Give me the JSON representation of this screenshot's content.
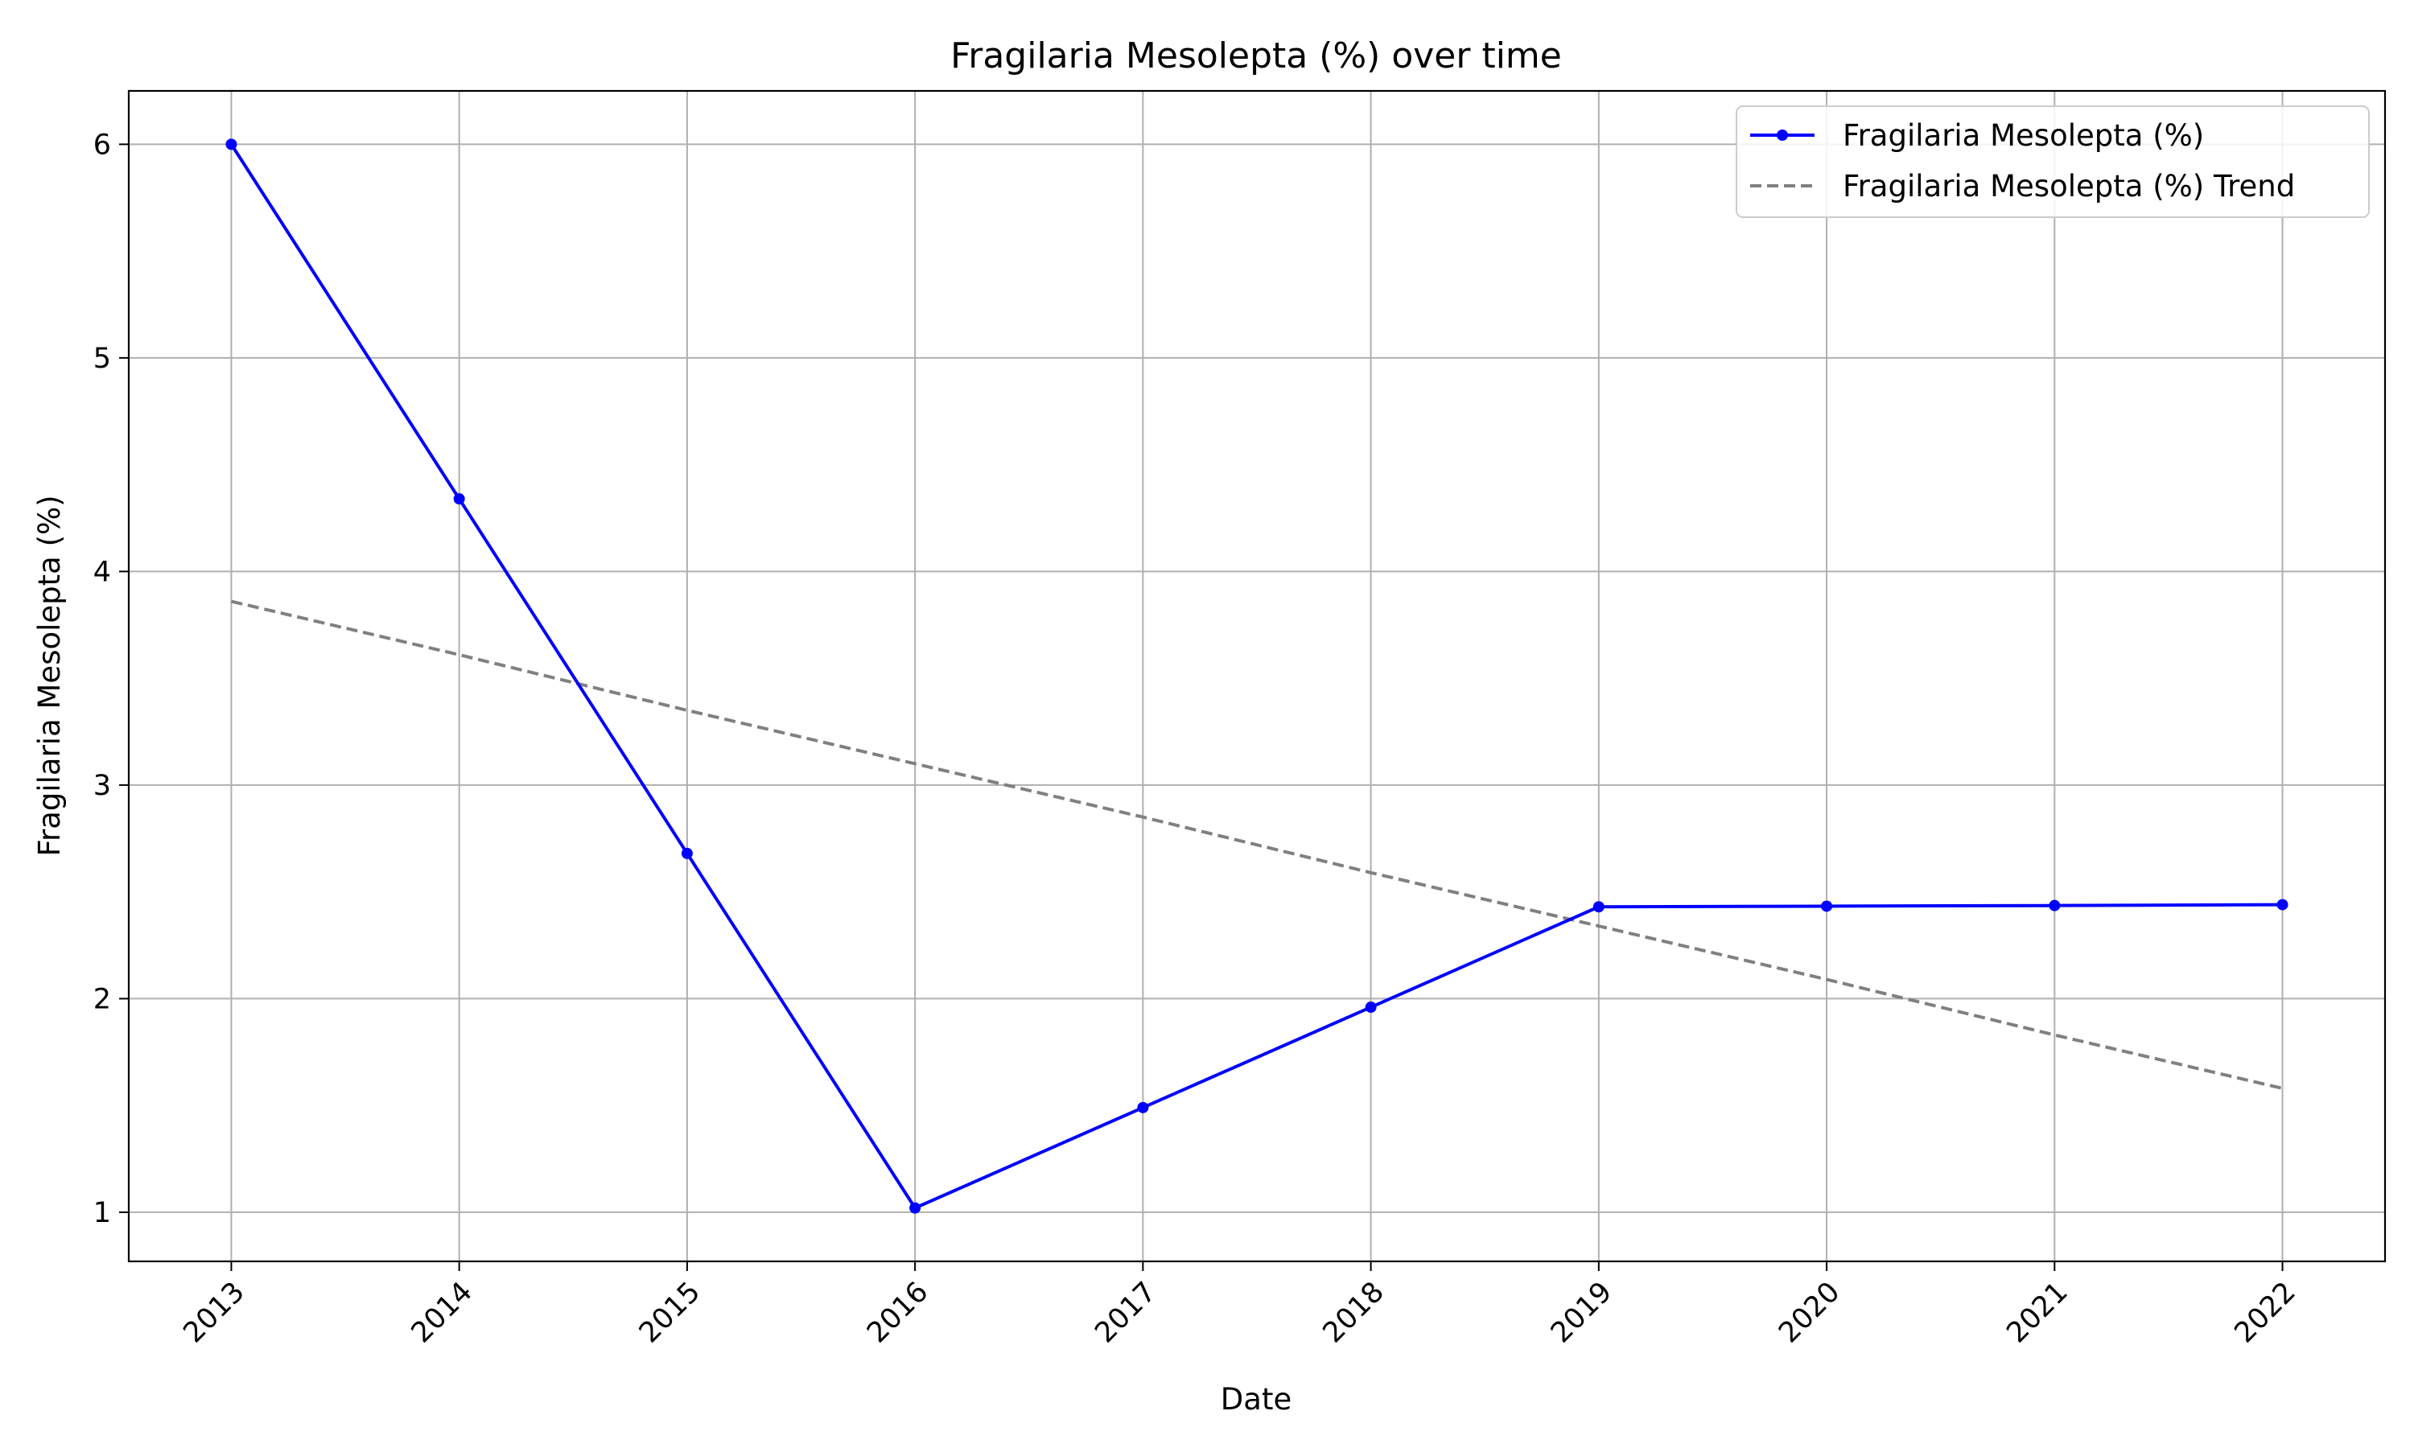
{
  "chart_data": {
    "type": "line",
    "title": "Fragilaria Mesolepta (%) over time",
    "xlabel": "Date",
    "ylabel": "Fragilaria Mesolepta (%)",
    "x": [
      "2013",
      "2014",
      "2015",
      "2016",
      "2017",
      "2018",
      "2019",
      "2020",
      "2021",
      "2022"
    ],
    "xlim": [
      "2012.55",
      "2022.45"
    ],
    "ylim": [
      0.77,
      6.25
    ],
    "yticks": [
      1,
      2,
      3,
      4,
      5,
      6
    ],
    "grid": true,
    "legend_position": "top-right",
    "series": [
      {
        "name": "Fragilaria Mesolepta (%)",
        "color": "#0000ff",
        "style": "solid",
        "marker": "circle",
        "values": [
          6.0,
          4.34,
          2.68,
          1.02,
          1.49,
          1.96,
          2.43,
          2.433,
          2.436,
          2.44
        ]
      },
      {
        "name": "Fragilaria Mesolepta (%) Trend",
        "color": "#808080",
        "style": "dashed",
        "marker": "none",
        "values": [
          3.86,
          3.61,
          3.35,
          3.1,
          2.85,
          2.59,
          2.34,
          2.09,
          1.83,
          1.58
        ]
      }
    ]
  }
}
